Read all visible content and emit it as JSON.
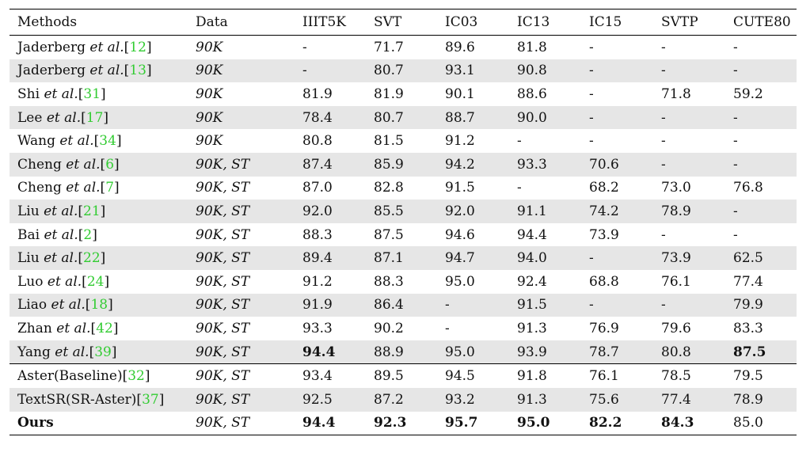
{
  "headers": [
    "Methods",
    "Data",
    "IIIT5K",
    "SVT",
    "IC03",
    "IC13",
    "IC15",
    "SVTP",
    "CUTE80"
  ],
  "rows": [
    {
      "name": "Jaderberg",
      "etal": "et al.",
      "ref": "12",
      "data": "90K",
      "vals": [
        "-",
        "71.7",
        "89.6",
        "81.8",
        "-",
        "-",
        "-"
      ],
      "bold": [],
      "shade": false,
      "group_start": false
    },
    {
      "name": "Jaderberg",
      "etal": "et al.",
      "ref": "13",
      "data": "90K",
      "vals": [
        "-",
        "80.7",
        "93.1",
        "90.8",
        "-",
        "-",
        "-"
      ],
      "bold": [],
      "shade": true,
      "group_start": false
    },
    {
      "name": "Shi",
      "etal": "et al.",
      "ref": "31",
      "data": "90K",
      "vals": [
        "81.9",
        "81.9",
        "90.1",
        "88.6",
        "-",
        "71.8",
        "59.2"
      ],
      "bold": [],
      "shade": false,
      "group_start": false
    },
    {
      "name": "Lee",
      "etal": "et al.",
      "ref": "17",
      "data": "90K",
      "vals": [
        "78.4",
        "80.7",
        "88.7",
        "90.0",
        "-",
        "-",
        "-"
      ],
      "bold": [],
      "shade": true,
      "group_start": false
    },
    {
      "name": "Wang",
      "etal": "et al.",
      "ref": "34",
      "data": "90K",
      "vals": [
        "80.8",
        "81.5",
        "91.2",
        "-",
        "-",
        "-",
        "-"
      ],
      "bold": [],
      "shade": false,
      "group_start": false
    },
    {
      "name": "Cheng",
      "etal": "et al.",
      "ref": "6",
      "data": "90K, ST",
      "vals": [
        "87.4",
        "85.9",
        "94.2",
        "93.3",
        "70.6",
        "-",
        "-"
      ],
      "bold": [],
      "shade": true,
      "group_start": false
    },
    {
      "name": "Cheng",
      "etal": "et al.",
      "ref": "7",
      "data": "90K, ST",
      "vals": [
        "87.0",
        "82.8",
        "91.5",
        "-",
        "68.2",
        "73.0",
        "76.8"
      ],
      "bold": [],
      "shade": false,
      "group_start": false
    },
    {
      "name": "Liu",
      "etal": "et al.",
      "ref": "21",
      "data": "90K, ST",
      "vals": [
        "92.0",
        "85.5",
        "92.0",
        "91.1",
        "74.2",
        "78.9",
        "-"
      ],
      "bold": [],
      "shade": true,
      "group_start": false
    },
    {
      "name": "Bai",
      "etal": "et al.",
      "ref": "2",
      "data": "90K, ST",
      "vals": [
        "88.3",
        "87.5",
        "94.6",
        "94.4",
        "73.9",
        "-",
        "-"
      ],
      "bold": [],
      "shade": false,
      "group_start": false
    },
    {
      "name": "Liu",
      "etal": "et al.",
      "ref": "22",
      "data": "90K, ST",
      "vals": [
        "89.4",
        "87.1",
        "94.7",
        "94.0",
        "-",
        "73.9",
        "62.5"
      ],
      "bold": [],
      "shade": true,
      "group_start": false
    },
    {
      "name": "Luo",
      "etal": "et al.",
      "ref": "24",
      "data": "90K, ST",
      "vals": [
        "91.2",
        "88.3",
        "95.0",
        "92.4",
        "68.8",
        "76.1",
        "77.4"
      ],
      "bold": [],
      "shade": false,
      "group_start": false
    },
    {
      "name": "Liao",
      "etal": "et al.",
      "ref": "18",
      "data": "90K, ST",
      "vals": [
        "91.9",
        "86.4",
        "-",
        "91.5",
        "-",
        "-",
        "79.9"
      ],
      "bold": [],
      "shade": true,
      "group_start": false
    },
    {
      "name": "Zhan",
      "etal": "et al.",
      "ref": "42",
      "data": "90K, ST",
      "vals": [
        "93.3",
        "90.2",
        "-",
        "91.3",
        "76.9",
        "79.6",
        "83.3"
      ],
      "bold": [],
      "shade": false,
      "group_start": false
    },
    {
      "name": "Yang",
      "etal": "et al.",
      "ref": "39",
      "data": "90K, ST",
      "vals": [
        "94.4",
        "88.9",
        "95.0",
        "93.9",
        "78.7",
        "80.8",
        "87.5"
      ],
      "bold": [
        0,
        6
      ],
      "shade": true,
      "group_start": false
    },
    {
      "name": "Aster(Baseline)",
      "etal": "",
      "ref": "32",
      "data": "90K, ST",
      "vals": [
        "93.4",
        "89.5",
        "94.5",
        "91.8",
        "76.1",
        "78.5",
        "79.5"
      ],
      "bold": [],
      "shade": false,
      "group_start": true
    },
    {
      "name": "TextSR(SR-Aster)",
      "etal": "",
      "ref": "37",
      "data": "90K, ST",
      "vals": [
        "92.5",
        "87.2",
        "93.2",
        "91.3",
        "75.6",
        "77.4",
        "78.9"
      ],
      "bold": [],
      "shade": true,
      "group_start": false
    },
    {
      "name": "Ours",
      "etal": "",
      "ref": "",
      "data": "90K, ST",
      "vals": [
        "94.4",
        "92.3",
        "95.7",
        "95.0",
        "82.2",
        "84.3",
        "85.0"
      ],
      "bold": [
        0,
        1,
        2,
        3,
        4,
        5
      ],
      "shade": false,
      "group_start": false,
      "name_bold": true
    }
  ]
}
